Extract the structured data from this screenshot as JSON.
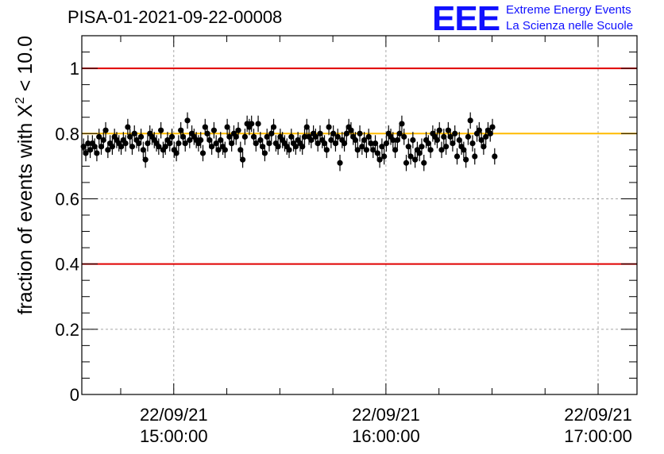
{
  "title": "PISA-01-2021-09-22-00008",
  "logo": {
    "letters": "EEE",
    "line1": "Extreme Energy Events",
    "line2": "La Scienza nelle Scuole",
    "color": "#1010ff"
  },
  "chart_data": {
    "type": "scatter",
    "title": "PISA-01-2021-09-22-00008",
    "xlabel": "",
    "ylabel": "fraction of events with χ² < 10.0",
    "ylabel_parts": {
      "prefix": "fraction of events with ",
      "symbol": "X",
      "sup": "2",
      "suffix": " < 10.0"
    },
    "ylim": [
      0,
      1.1
    ],
    "xlim": [
      "2021-09-22 14:34:00",
      "2021-09-22 17:11:00"
    ],
    "yticks": [
      0,
      0.2,
      0.4,
      0.6,
      0.8,
      1
    ],
    "ytick_labels": [
      "0",
      "0.2",
      "0.4",
      "0.6",
      "0.8",
      "1"
    ],
    "xticks": [
      "2021-09-22 15:00:00",
      "2021-09-22 16:00:00",
      "2021-09-22 17:00:00"
    ],
    "xtick_labels": [
      [
        "22/09/21",
        "15:00:00"
      ],
      [
        "22/09/21",
        "16:00:00"
      ],
      [
        "22/09/21",
        "17:00:00"
      ]
    ],
    "grid": true,
    "reference_lines": [
      {
        "y": 1.0,
        "color": "#e00000"
      },
      {
        "y": 0.4,
        "color": "#e00000"
      },
      {
        "y": 0.8,
        "color": "#ffbb00"
      }
    ],
    "error_bar": 0.025,
    "points": {
      "start": "2021-09-22 14:34:30",
      "interval_minutes": 0.625,
      "y": [
        0.76,
        0.74,
        0.77,
        0.75,
        0.77,
        0.76,
        0.74,
        0.79,
        0.76,
        0.78,
        0.81,
        0.75,
        0.77,
        0.76,
        0.79,
        0.78,
        0.77,
        0.76,
        0.78,
        0.77,
        0.82,
        0.79,
        0.76,
        0.8,
        0.78,
        0.77,
        0.79,
        0.75,
        0.72,
        0.77,
        0.8,
        0.79,
        0.78,
        0.77,
        0.76,
        0.81,
        0.75,
        0.76,
        0.78,
        0.77,
        0.79,
        0.75,
        0.74,
        0.77,
        0.81,
        0.79,
        0.77,
        0.84,
        0.78,
        0.8,
        0.79,
        0.78,
        0.77,
        0.78,
        0.74,
        0.82,
        0.8,
        0.78,
        0.76,
        0.81,
        0.77,
        0.75,
        0.78,
        0.76,
        0.75,
        0.82,
        0.79,
        0.77,
        0.8,
        0.79,
        0.81,
        0.75,
        0.72,
        0.79,
        0.83,
        0.82,
        0.83,
        0.79,
        0.77,
        0.83,
        0.78,
        0.76,
        0.74,
        0.79,
        0.77,
        0.8,
        0.82,
        0.77,
        0.76,
        0.79,
        0.78,
        0.77,
        0.76,
        0.75,
        0.79,
        0.77,
        0.76,
        0.78,
        0.77,
        0.76,
        0.79,
        0.82,
        0.79,
        0.78,
        0.8,
        0.79,
        0.77,
        0.8,
        0.78,
        0.77,
        0.75,
        0.82,
        0.78,
        0.8,
        0.77,
        0.79,
        0.71,
        0.78,
        0.77,
        0.8,
        0.82,
        0.81,
        0.79,
        0.78,
        0.75,
        0.8,
        0.76,
        0.78,
        0.75,
        0.79,
        0.77,
        0.75,
        0.77,
        0.74,
        0.72,
        0.76,
        0.73,
        0.77,
        0.8,
        0.79,
        0.78,
        0.75,
        0.78,
        0.8,
        0.83,
        0.79,
        0.71,
        0.76,
        0.73,
        0.78,
        0.72,
        0.75,
        0.74,
        0.76,
        0.71,
        0.78,
        0.77,
        0.75,
        0.8,
        0.79,
        0.78,
        0.81,
        0.75,
        0.79,
        0.76,
        0.81,
        0.79,
        0.77,
        0.8,
        0.73,
        0.78,
        0.76,
        0.75,
        0.72,
        0.79,
        0.84,
        0.77,
        0.73,
        0.8,
        0.81,
        0.78,
        0.76,
        0.79,
        0.81,
        0.8,
        0.82,
        0.73
      ]
    }
  }
}
